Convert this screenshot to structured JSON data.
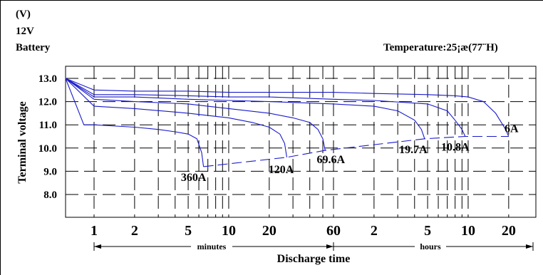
{
  "chart_data": {
    "type": "line",
    "unit_label": "(V)",
    "battery_voltage_label": "12V",
    "battery_label": "Battery",
    "temperature_label": "Temperature:25¡æ(77¨H)",
    "ylabel": "Terminal voltage",
    "xlabel": "Discharge time",
    "ylim": [
      7.0,
      13.5
    ],
    "yticks": [
      13.0,
      12.0,
      11.0,
      10.0,
      9.0,
      8.0
    ],
    "ytick_labels": [
      "13.0",
      "12.0",
      "11.0",
      "10.0",
      "9.0",
      "8.0"
    ],
    "xscale": "log",
    "xlim_minutes": [
      0.5,
      1800
    ],
    "xticks_minutes": [
      1,
      2,
      5,
      10,
      20,
      60,
      120,
      300,
      600,
      1200
    ],
    "xtick_labels": [
      "1",
      "2",
      "5",
      "10",
      "20",
      "60",
      "2",
      "5",
      "10",
      "20"
    ],
    "x_range_labels": {
      "minutes": "minutes",
      "hours": "hours"
    },
    "grid": true,
    "series": [
      {
        "name": "360A",
        "x": [
          0.5,
          0.8,
          1,
          2,
          3,
          4,
          5,
          5.8,
          6.3,
          6.5
        ],
        "y": [
          13.0,
          11.0,
          11.0,
          10.9,
          10.8,
          10.7,
          10.6,
          10.4,
          9.8,
          9.2
        ]
      },
      {
        "name": "120A",
        "x": [
          0.5,
          1,
          2,
          5,
          10,
          15,
          20,
          24,
          26,
          27
        ],
        "y": [
          13.0,
          11.8,
          11.7,
          11.5,
          11.3,
          11.1,
          10.9,
          10.6,
          10.2,
          9.6
        ]
      },
      {
        "name": "69.6A",
        "x": [
          0.5,
          1,
          2,
          5,
          10,
          20,
          30,
          40,
          46,
          50,
          52
        ],
        "y": [
          13.0,
          12.1,
          12.0,
          11.9,
          11.7,
          11.5,
          11.3,
          11.1,
          10.8,
          10.4,
          9.9
        ]
      },
      {
        "name": "19.7A",
        "x": [
          0.5,
          1,
          2,
          5,
          10,
          20,
          60,
          120,
          180,
          240,
          270,
          285
        ],
        "y": [
          13.0,
          12.2,
          12.2,
          12.1,
          12.05,
          12.0,
          11.9,
          11.8,
          11.6,
          11.2,
          10.8,
          10.4
        ]
      },
      {
        "name": "10.8A",
        "x": [
          0.5,
          1,
          2,
          5,
          10,
          20,
          60,
          120,
          300,
          420,
          480,
          540,
          570
        ],
        "y": [
          13.0,
          12.3,
          12.3,
          12.25,
          12.2,
          12.2,
          12.1,
          12.05,
          11.9,
          11.6,
          11.2,
          10.8,
          10.5
        ]
      },
      {
        "name": "6A",
        "x": [
          0.5,
          1,
          2,
          5,
          10,
          20,
          60,
          120,
          300,
          480,
          600,
          780,
          960,
          1140,
          1200
        ],
        "y": [
          13.0,
          12.5,
          12.45,
          12.45,
          12.4,
          12.4,
          12.4,
          12.35,
          12.3,
          12.25,
          12.2,
          12.0,
          11.5,
          10.8,
          10.5
        ]
      }
    ],
    "end_line": {
      "x": [
        6.5,
        27,
        52,
        285,
        570,
        1200
      ],
      "y": [
        9.2,
        9.6,
        9.9,
        10.4,
        10.5,
        10.5
      ]
    }
  }
}
